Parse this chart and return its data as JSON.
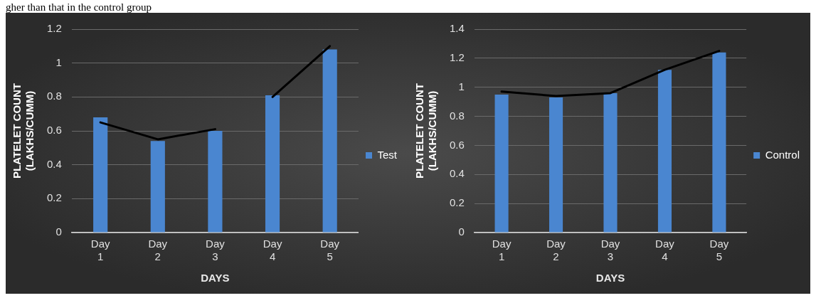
{
  "chart_data": [
    {
      "type": "bar",
      "annotations": [
        "gher than that in the control group"
      ],
      "xlabel": "DAYS",
      "ylabel": "PLATELET COUNT (LAKHS/CUMM)",
      "categories": [
        "Day 1",
        "Day 2",
        "Day 3",
        "Day 4",
        "Day 5"
      ],
      "series": [
        {
          "name": "Test",
          "color": "#4a86d0",
          "values": [
            0.68,
            0.54,
            0.6,
            0.81,
            1.08
          ]
        },
        {
          "type": "line",
          "color": "#000000",
          "values": [
            0.65,
            0.55,
            0.61,
            null,
            null
          ]
        },
        {
          "type": "line",
          "color": "#000000",
          "values": [
            null,
            null,
            null,
            0.8,
            1.1
          ]
        }
      ],
      "ylim": [
        0,
        1.2
      ],
      "yticks": [
        0,
        0.2,
        0.4,
        0.6,
        0.8,
        1,
        1.2
      ],
      "grid": "y",
      "legend": "right"
    },
    {
      "type": "bar",
      "xlabel": "DAYS",
      "ylabel": "PLATELET COUNT (LAKHS/CUMM)",
      "categories": [
        "Day 1",
        "Day 2",
        "Day 3",
        "Day 4",
        "Day 5"
      ],
      "series": [
        {
          "name": "Control",
          "color": "#4a86d0",
          "values": [
            0.95,
            0.93,
            0.96,
            1.12,
            1.24
          ]
        },
        {
          "type": "line",
          "color": "#000000",
          "values": [
            0.97,
            0.94,
            0.96,
            1.12,
            1.25
          ]
        }
      ],
      "ylim": [
        0,
        1.4
      ],
      "yticks": [
        0,
        0.2,
        0.4,
        0.6,
        0.8,
        1,
        1.2,
        1.4
      ],
      "grid": "y",
      "legend": "right"
    }
  ]
}
